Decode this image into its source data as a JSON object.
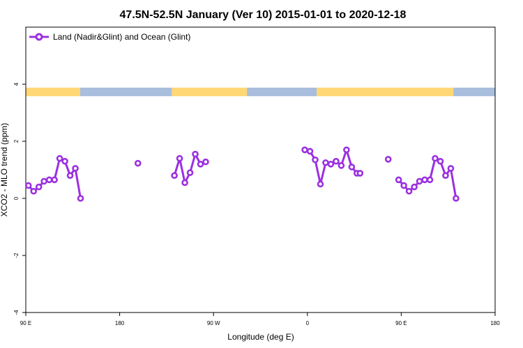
{
  "chart_data": {
    "type": "line",
    "title": "47.5N-52.5N January (Ver 10)   2015-01-01 to 2020-12-18",
    "xlabel": "Longitude (deg E)",
    "ylabel": "XCO2 - MLO trend (ppm)",
    "xlim": [
      90,
      540
    ],
    "ylim": [
      -4,
      6
    ],
    "x_ticks": [
      {
        "value": 90,
        "label": "90 E"
      },
      {
        "value": 180,
        "label": "180"
      },
      {
        "value": 270,
        "label": "90 W"
      },
      {
        "value": 360,
        "label": "0"
      },
      {
        "value": 450,
        "label": "90 E"
      },
      {
        "value": 540,
        "label": "180"
      }
    ],
    "y_ticks": [
      {
        "value": -4,
        "label": "-4"
      },
      {
        "value": -2,
        "label": "-2"
      },
      {
        "value": 0,
        "label": "0"
      },
      {
        "value": 2,
        "label": "2"
      },
      {
        "value": 4,
        "label": "4"
      }
    ],
    "legend_position": "top-left",
    "series_color": "#9b30e0",
    "land_color": "#ffd875",
    "ocean_color": "#a8bedc",
    "land_mask": {
      "y_range": [
        3.58,
        3.88
      ],
      "segments": [
        {
          "type": "land",
          "from": 90,
          "to": 142
        },
        {
          "type": "ocean",
          "from": 142,
          "to": 230
        },
        {
          "type": "land",
          "from": 230,
          "to": 302
        },
        {
          "type": "ocean",
          "from": 302,
          "to": 369
        },
        {
          "type": "land",
          "from": 369,
          "to": 500
        },
        {
          "type": "ocean",
          "from": 500,
          "to": 540
        }
      ]
    },
    "series": [
      {
        "name": "Land (Nadir&Glint) and Ocean (Glint)",
        "segments": [
          {
            "x": [
              92.5,
              97.5,
              102.5,
              107.5,
              112.5,
              117.5,
              122.5,
              127.5,
              132.5,
              137.5,
              142.5
            ],
            "y": [
              0.45,
              0.25,
              0.4,
              0.6,
              0.65,
              0.65,
              1.4,
              1.3,
              0.8,
              1.05,
              0
            ]
          },
          {
            "x": [
              197.5
            ],
            "y": [
              1.23
            ]
          },
          {
            "x": [
              232.5,
              237.5,
              242.5,
              247.5,
              252.5,
              257.5,
              262.5
            ],
            "y": [
              0.8,
              1.4,
              0.55,
              0.9,
              1.55,
              1.2,
              1.28
            ]
          },
          {
            "x": [
              357.5,
              362.5,
              367.5,
              372.5,
              377.5,
              382.5,
              387.5,
              392.5,
              397.5,
              402.5,
              407.5,
              410.5
            ],
            "y": [
              1.7,
              1.65,
              1.35,
              0.5,
              1.25,
              1.2,
              1.3,
              1.15,
              1.7,
              1.1,
              0.88,
              0.88
            ]
          },
          {
            "x": [
              437.5
            ],
            "y": [
              1.37
            ]
          },
          {
            "x": [
              447.5,
              452.5,
              457.5,
              462.5,
              467.5,
              472.5,
              477.5,
              482.5,
              487.5,
              492.5,
              497.5,
              502.5
            ],
            "y": [
              0.65,
              0.45,
              0.25,
              0.4,
              0.6,
              0.65,
              0.65,
              1.4,
              1.3,
              0.8,
              1.05,
              0
            ]
          }
        ]
      }
    ]
  }
}
